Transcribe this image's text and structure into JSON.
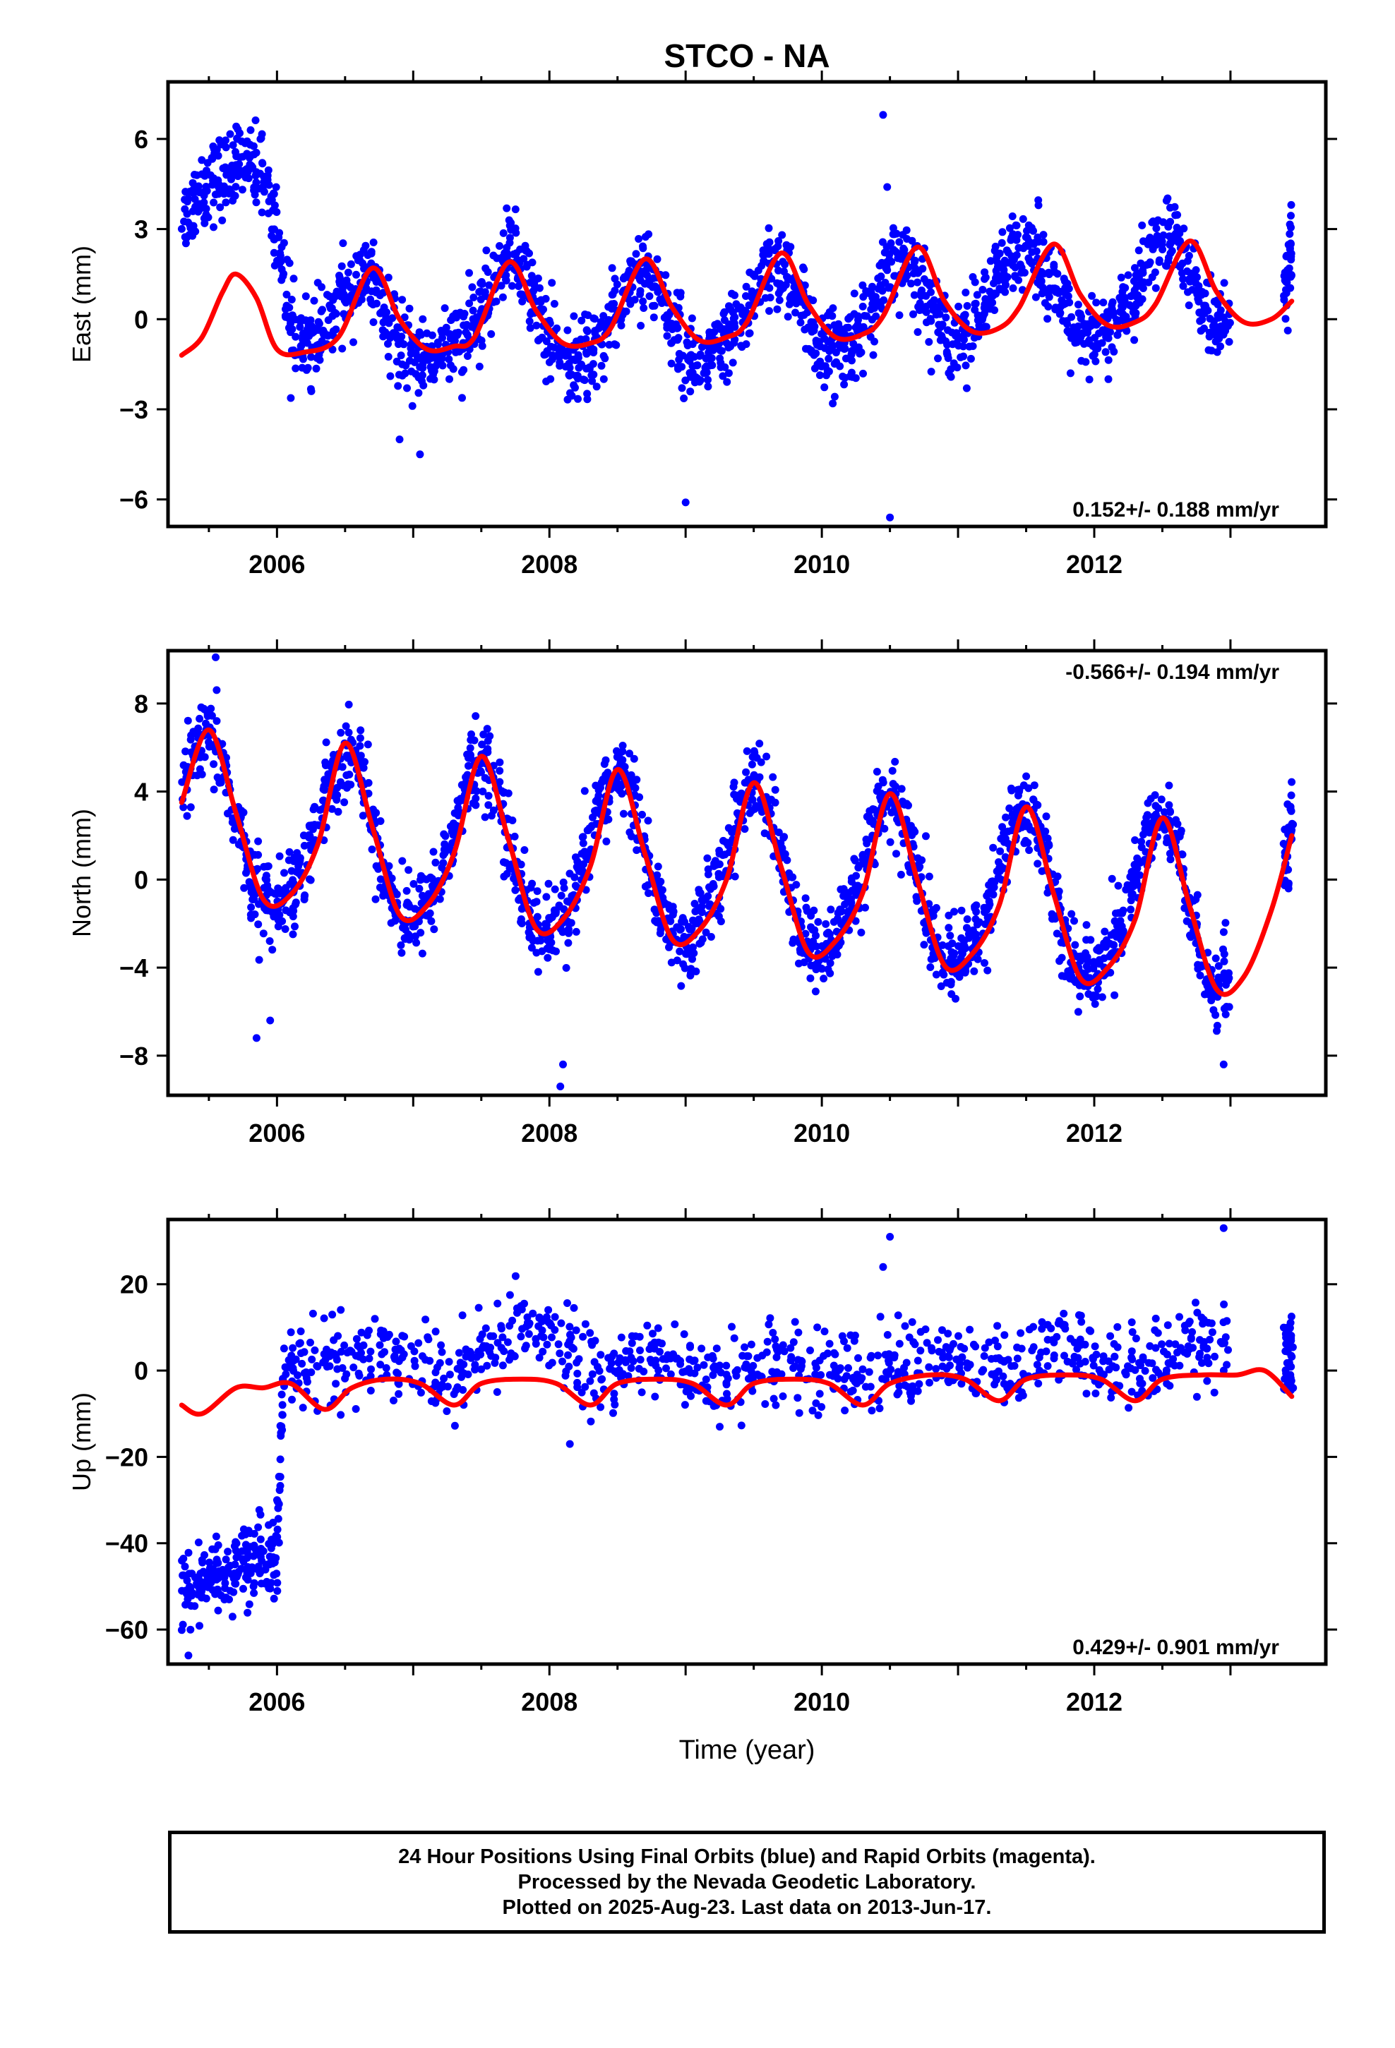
{
  "title": "STCO - NA",
  "footer": {
    "line1": "24 Hour Positions Using Final Orbits (blue) and Rapid Orbits (magenta).",
    "line2": "Processed by the Nevada Geodetic Laboratory.",
    "line3": "Plotted on 2025-Aug-23. Last data on 2013-Jun-17."
  },
  "colors": {
    "points": "#0000ff",
    "model": "#ff0000",
    "axes": "#000000"
  },
  "chart_data": [
    {
      "type": "scatter",
      "component": "east",
      "ylabel": "East (mm)",
      "xlabel": "",
      "xlim": [
        2005.2,
        2013.7
      ],
      "ylim": [
        -6.9,
        7.9
      ],
      "xticks": [
        2006,
        2008,
        2010,
        2012
      ],
      "yticks": [
        -6,
        -3,
        0,
        3,
        6
      ],
      "rate_label": "0.152+/- 0.188 mm/yr",
      "rate_position": "bottom-right",
      "series": [
        {
          "style": "blue-dots",
          "x": [
            2005.3,
            2005.4,
            2005.5,
            2005.6,
            2005.7,
            2005.8,
            2005.9,
            2006.0,
            2006.1,
            2006.2,
            2006.3,
            2006.4,
            2006.5,
            2006.6,
            2006.7,
            2006.8,
            2006.9,
            2007.0,
            2007.1,
            2007.2,
            2007.3,
            2007.4,
            2007.5,
            2007.6,
            2007.7,
            2007.8,
            2007.9,
            2008.0,
            2008.1,
            2008.2,
            2008.3,
            2008.4,
            2008.5,
            2008.6,
            2008.7,
            2008.8,
            2008.9,
            2009.0,
            2009.1,
            2009.2,
            2009.3,
            2009.4,
            2009.5,
            2009.6,
            2009.7,
            2009.8,
            2009.9,
            2010.0,
            2010.1,
            2010.2,
            2010.3,
            2010.4,
            2010.5,
            2010.6,
            2010.7,
            2010.8,
            2010.9,
            2011.0,
            2011.1,
            2011.2,
            2011.3,
            2011.4,
            2011.5,
            2011.6,
            2011.7,
            2011.8,
            2011.9,
            2012.0,
            2012.1,
            2012.2,
            2012.3,
            2012.4,
            2012.5,
            2012.6,
            2012.7,
            2012.8,
            2012.9,
            2013.0,
            2013.4,
            2013.45
          ],
          "y": [
            3.2,
            4.0,
            4.6,
            4.8,
            5.0,
            5.3,
            5.0,
            3.0,
            -0.3,
            -0.8,
            -0.6,
            0.0,
            0.8,
            1.4,
            1.2,
            0.0,
            -0.9,
            -1.2,
            -1.3,
            -1.1,
            -0.9,
            -0.6,
            0.3,
            1.4,
            2.2,
            1.8,
            0.6,
            -0.8,
            -1.3,
            -1.5,
            -1.2,
            -0.6,
            0.4,
            1.4,
            1.8,
            1.0,
            -0.2,
            -1.0,
            -1.4,
            -1.3,
            -0.9,
            -0.2,
            0.8,
            1.6,
            1.7,
            0.9,
            -0.2,
            -0.9,
            -1.1,
            -0.8,
            -0.3,
            0.6,
            1.6,
            2.0,
            1.5,
            0.5,
            -0.4,
            -0.6,
            -0.2,
            0.5,
            1.4,
            2.1,
            2.5,
            2.2,
            1.1,
            0.0,
            -0.6,
            -0.7,
            -0.4,
            0.1,
            0.9,
            2.0,
            2.8,
            2.6,
            1.6,
            0.4,
            -0.3,
            -0.5,
            1.2,
            2.2
          ],
          "outliers_x": [
            2009.0,
            2010.5,
            2010.45,
            2010.48,
            2007.05,
            2006.9
          ],
          "outliers_y": [
            -6.1,
            -6.6,
            6.8,
            4.4,
            -4.5,
            -4.0
          ]
        },
        {
          "style": "red-line",
          "x": [
            2005.3,
            2005.45,
            2005.6,
            2005.7,
            2005.85,
            2006.0,
            2006.2,
            2006.45,
            2006.7,
            2006.9,
            2007.1,
            2007.3,
            2007.45,
            2007.7,
            2007.9,
            2008.1,
            2008.3,
            2008.45,
            2008.7,
            2008.9,
            2009.1,
            2009.3,
            2009.45,
            2009.7,
            2009.9,
            2010.1,
            2010.3,
            2010.45,
            2010.7,
            2010.9,
            2011.1,
            2011.3,
            2011.45,
            2011.7,
            2011.9,
            2012.1,
            2012.3,
            2012.45,
            2012.7,
            2012.9,
            2013.1,
            2013.3,
            2013.45
          ],
          "y": [
            -1.2,
            -0.6,
            0.9,
            1.5,
            0.7,
            -1.0,
            -1.1,
            -0.6,
            1.7,
            0.0,
            -1.0,
            -0.9,
            -0.6,
            1.9,
            0.3,
            -0.8,
            -0.8,
            -0.3,
            2.0,
            0.4,
            -0.7,
            -0.6,
            -0.1,
            2.2,
            0.5,
            -0.6,
            -0.5,
            0.1,
            2.4,
            0.6,
            -0.4,
            -0.3,
            0.4,
            2.5,
            0.8,
            -0.2,
            -0.1,
            0.5,
            2.6,
            0.9,
            -0.1,
            0.0,
            0.6
          ]
        }
      ]
    },
    {
      "type": "scatter",
      "component": "north",
      "ylabel": "North (mm)",
      "xlabel": "",
      "xlim": [
        2005.2,
        2013.7
      ],
      "ylim": [
        -9.8,
        10.4
      ],
      "xticks": [
        2006,
        2008,
        2010,
        2012
      ],
      "yticks": [
        -8,
        -4,
        0,
        4,
        8
      ],
      "rate_label": "-0.566+/- 0.194 mm/yr",
      "rate_position": "top-right",
      "series": [
        {
          "style": "blue-dots",
          "x": [
            2005.3,
            2005.4,
            2005.5,
            2005.6,
            2005.7,
            2005.8,
            2005.9,
            2006.0,
            2006.1,
            2006.2,
            2006.3,
            2006.4,
            2006.5,
            2006.6,
            2006.7,
            2006.8,
            2006.9,
            2007.0,
            2007.1,
            2007.2,
            2007.3,
            2007.4,
            2007.5,
            2007.6,
            2007.7,
            2007.8,
            2007.9,
            2008.0,
            2008.1,
            2008.2,
            2008.3,
            2008.4,
            2008.5,
            2008.6,
            2008.7,
            2008.8,
            2008.9,
            2009.0,
            2009.1,
            2009.2,
            2009.3,
            2009.4,
            2009.5,
            2009.6,
            2009.7,
            2009.8,
            2009.9,
            2010.0,
            2010.1,
            2010.2,
            2010.3,
            2010.4,
            2010.5,
            2010.6,
            2010.7,
            2010.8,
            2010.9,
            2011.0,
            2011.1,
            2011.2,
            2011.3,
            2011.4,
            2011.5,
            2011.6,
            2011.7,
            2011.8,
            2011.9,
            2012.0,
            2012.1,
            2012.2,
            2012.3,
            2012.4,
            2012.5,
            2012.6,
            2012.7,
            2012.8,
            2012.9,
            2013.0,
            2013.4,
            2013.45
          ],
          "y": [
            4.0,
            5.8,
            6.5,
            5.2,
            2.8,
            0.2,
            -1.0,
            -1.0,
            -0.3,
            0.8,
            2.6,
            4.8,
            6.0,
            5.2,
            2.8,
            0.2,
            -1.6,
            -1.8,
            -1.0,
            0.2,
            2.2,
            4.4,
            5.5,
            4.6,
            2.0,
            -0.6,
            -2.2,
            -2.6,
            -1.8,
            -0.4,
            1.6,
            3.8,
            5.0,
            4.0,
            1.4,
            -1.0,
            -2.6,
            -2.8,
            -2.0,
            -0.8,
            1.0,
            3.2,
            4.6,
            3.6,
            1.0,
            -1.6,
            -3.2,
            -3.4,
            -2.6,
            -1.2,
            0.6,
            2.8,
            3.8,
            2.8,
            0.2,
            -2.4,
            -3.8,
            -3.8,
            -3.0,
            -1.6,
            0.4,
            2.6,
            3.2,
            2.2,
            -0.4,
            -3.0,
            -4.4,
            -4.2,
            -3.4,
            -2.0,
            0.0,
            2.2,
            2.8,
            1.6,
            -1.4,
            -4.0,
            -4.8,
            -4.6,
            1.0,
            2.4
          ],
          "outliers_x": [
            2005.55,
            2005.85,
            2005.95,
            2008.1,
            2008.08,
            2012.95
          ],
          "outliers_y": [
            10.1,
            -7.2,
            -6.4,
            -8.4,
            -9.4,
            -8.4
          ]
        },
        {
          "style": "red-line",
          "x": [
            2005.3,
            2005.5,
            2005.7,
            2005.9,
            2006.1,
            2006.3,
            2006.5,
            2006.7,
            2006.9,
            2007.1,
            2007.3,
            2007.5,
            2007.7,
            2007.9,
            2008.1,
            2008.3,
            2008.5,
            2008.7,
            2008.9,
            2009.1,
            2009.3,
            2009.5,
            2009.7,
            2009.9,
            2010.1,
            2010.3,
            2010.5,
            2010.7,
            2010.9,
            2011.1,
            2011.3,
            2011.5,
            2011.7,
            2011.9,
            2012.1,
            2012.3,
            2012.5,
            2012.7,
            2012.9,
            2013.1,
            2013.3,
            2013.45
          ],
          "y": [
            3.5,
            6.8,
            3.0,
            -0.9,
            -0.7,
            1.6,
            6.2,
            2.4,
            -1.6,
            -1.2,
            1.2,
            5.6,
            1.8,
            -2.2,
            -1.8,
            0.6,
            5.0,
            1.2,
            -2.7,
            -2.3,
            0.0,
            4.4,
            0.6,
            -3.3,
            -2.8,
            -0.6,
            3.9,
            0.0,
            -3.9,
            -3.4,
            -1.2,
            3.3,
            -0.6,
            -4.5,
            -4.0,
            -1.8,
            2.8,
            -1.2,
            -5.0,
            -4.4,
            -1.4,
            2.0
          ]
        }
      ]
    },
    {
      "type": "scatter",
      "component": "up",
      "ylabel": "Up (mm)",
      "xlabel": "Time (year)",
      "xlim": [
        2005.2,
        2013.7
      ],
      "ylim": [
        -68,
        35
      ],
      "xticks": [
        2006,
        2008,
        2010,
        2012
      ],
      "yticks": [
        -60,
        -40,
        -20,
        0,
        20
      ],
      "rate_label": "0.429+/- 0.901 mm/yr",
      "rate_position": "bottom-right",
      "series": [
        {
          "style": "blue-dots",
          "x": [
            2005.3,
            2005.4,
            2005.5,
            2005.6,
            2005.7,
            2005.8,
            2005.9,
            2006.0,
            2006.05,
            2006.2,
            2006.4,
            2006.6,
            2006.8,
            2007.0,
            2007.2,
            2007.4,
            2007.6,
            2007.8,
            2008.0,
            2008.2,
            2008.4,
            2008.6,
            2008.8,
            2009.0,
            2009.2,
            2009.4,
            2009.6,
            2009.8,
            2010.0,
            2010.2,
            2010.4,
            2010.6,
            2010.8,
            2011.0,
            2011.2,
            2011.4,
            2011.6,
            2011.8,
            2012.0,
            2012.2,
            2012.4,
            2012.6,
            2012.8,
            2013.0,
            2013.4,
            2013.45
          ],
          "y": [
            -53,
            -50,
            -48,
            -47,
            -46,
            -45,
            -44,
            -44,
            1,
            1,
            2,
            3,
            4,
            2,
            0,
            0,
            6,
            11,
            9,
            1,
            -1,
            2,
            4,
            0,
            -2,
            -1,
            2,
            1,
            0,
            0,
            -1,
            2,
            3,
            1,
            0,
            0,
            3,
            6,
            2,
            0,
            2,
            6,
            8,
            6,
            1,
            3
          ],
          "outliers_x": [
            2005.35,
            2006.0,
            2010.5,
            2010.45,
            2008.15,
            2012.95
          ],
          "outliers_y": [
            -66,
            -30,
            31,
            24,
            -17,
            33
          ]
        },
        {
          "style": "red-line",
          "x": [
            2005.3,
            2005.45,
            2005.7,
            2005.9,
            2006.1,
            2006.35,
            2006.55,
            2006.8,
            2007.05,
            2007.3,
            2007.5,
            2007.8,
            2008.05,
            2008.3,
            2008.5,
            2008.8,
            2009.05,
            2009.3,
            2009.5,
            2009.8,
            2010.05,
            2010.3,
            2010.5,
            2010.8,
            2011.05,
            2011.3,
            2011.5,
            2011.8,
            2012.05,
            2012.3,
            2012.5,
            2012.8,
            2013.05,
            2013.25,
            2013.45
          ],
          "y": [
            -8,
            -10,
            -4,
            -4,
            -3,
            -9,
            -4,
            -2,
            -3,
            -8,
            -3,
            -2,
            -3,
            -8,
            -3,
            -2,
            -3,
            -8,
            -3,
            -2,
            -3,
            -8,
            -3,
            -1,
            -2,
            -7,
            -2,
            -1,
            -2,
            -7,
            -2,
            -1,
            -1,
            0,
            -6
          ]
        }
      ]
    }
  ]
}
